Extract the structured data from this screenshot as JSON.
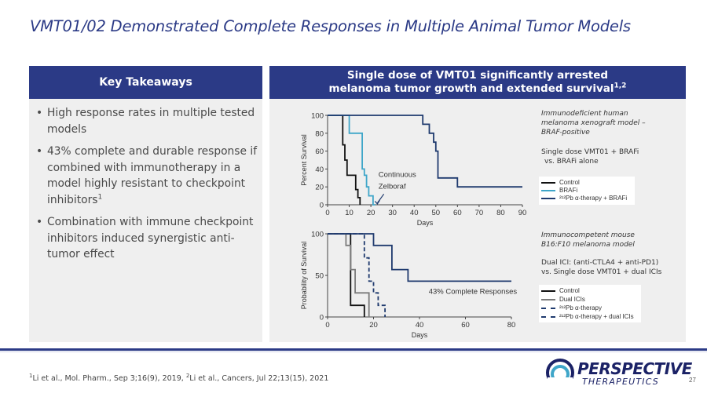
{
  "slide": {
    "title": "VMT01/02 Demonstrated Complete Responses in Multiple Animal Tumor Models",
    "page_number": "27"
  },
  "left_panel": {
    "header": "Key Takeaways",
    "bullets": [
      {
        "text": "High response rates in multiple tested models",
        "sup": ""
      },
      {
        "text": "43% complete and durable response if combined with immunotherapy in a model highly resistant to checkpoint inhibitors",
        "sup": "1"
      },
      {
        "text": "Combination with immune checkpoint inhibitors induced synergistic anti-tumor effect",
        "sup": ""
      }
    ]
  },
  "right_panel": {
    "header_line1": "Single dose of VMT01 significantly arrested",
    "header_line2": "melanoma tumor growth and extended survival",
    "header_sup": "1,2"
  },
  "chart_top_notes": {
    "model": "Immunodeficient human melanoma xenograft model – BRAF-positive",
    "model_l1": "Immunodeficient human",
    "model_l2": "melanoma xenograft model –",
    "model_l3": "BRAF-positive",
    "treatment_l1": "Single dose VMT01 + BRAFi",
    "treatment_l2": "vs. BRAFi alone",
    "annotation_l1": "Continuous",
    "annotation_l2": "Zelboraf"
  },
  "chart_bottom_notes": {
    "model_l1": "Immunocompetent mouse",
    "model_l2": "B16:F10 melanoma model",
    "treatment_l1": "Dual ICI: (anti-CTLA4 + anti-PD1)",
    "treatment_l2": "vs.  Single dose VMT01 + dual ICIs",
    "annotation": "43% Complete Responses"
  },
  "colors": {
    "brand_navy": "#2b3a86",
    "panel_gray": "#efefef",
    "control": "#111111",
    "brafi": "#3fa6c9",
    "vmt_brafi": "#1f3a6e",
    "dual_ici": "#7b7b7b",
    "vmt_dual": "#1f3a6e"
  },
  "footer": {
    "ref1_sup": "1",
    "ref1": "Li et al., Mol. Pharm., Sep 3;16(9), 2019, ",
    "ref2_sup": "2",
    "ref2": "Li et al., Cancers, Jul 22;13(15), 2021",
    "logo_word": "PERSPECTIVE",
    "logo_sub": "THERAPEUTICS"
  },
  "chart_data": [
    {
      "type": "line",
      "step": true,
      "xlabel": "Days",
      "ylabel": "Percent Survival",
      "xlim": [
        0,
        90
      ],
      "ylim": [
        0,
        100
      ],
      "xticks": [
        0,
        10,
        20,
        30,
        40,
        50,
        60,
        70,
        80,
        90
      ],
      "yticks": [
        0,
        20,
        40,
        60,
        80,
        100
      ],
      "series": [
        {
          "name": "Control",
          "color": "#111111",
          "dash": false,
          "x": [
            0,
            7,
            7,
            8,
            8,
            9,
            9,
            13,
            13,
            14,
            14,
            15,
            15
          ],
          "y": [
            100,
            100,
            67,
            67,
            50,
            50,
            33,
            33,
            17,
            17,
            8,
            8,
            0
          ]
        },
        {
          "name": "BRAFi",
          "color": "#3fa6c9",
          "dash": false,
          "x": [
            0,
            10,
            10,
            13,
            13,
            16,
            16,
            17,
            17,
            18,
            18,
            19,
            19,
            21,
            21,
            22
          ],
          "y": [
            100,
            100,
            80,
            80,
            80,
            80,
            40,
            40,
            33,
            33,
            20,
            20,
            10,
            10,
            0,
            0
          ]
        },
        {
          "name": "²¹²Pb α-therapy + BRAFi",
          "color": "#1f3a6e",
          "dash": false,
          "x": [
            0,
            44,
            44,
            47,
            47,
            49,
            49,
            50,
            50,
            51,
            51,
            60,
            60,
            90
          ],
          "y": [
            100,
            100,
            90,
            90,
            80,
            80,
            70,
            70,
            60,
            60,
            30,
            30,
            20,
            20
          ]
        }
      ]
    },
    {
      "type": "line",
      "step": true,
      "xlabel": "Days",
      "ylabel": "Probability of Survival",
      "xlim": [
        0,
        80
      ],
      "ylim": [
        0,
        100
      ],
      "xticks": [
        0,
        20,
        40,
        60,
        80
      ],
      "yticks": [
        0,
        50,
        100
      ],
      "series": [
        {
          "name": "Control",
          "color": "#111111",
          "dash": false,
          "x": [
            0,
            10,
            10,
            16,
            16
          ],
          "y": [
            100,
            100,
            14,
            14,
            0
          ]
        },
        {
          "name": "Dual ICIs",
          "color": "#7b7b7b",
          "dash": false,
          "x": [
            0,
            8,
            8,
            10,
            10,
            12,
            12,
            18,
            18
          ],
          "y": [
            100,
            100,
            86,
            86,
            57,
            57,
            29,
            29,
            0
          ]
        },
        {
          "name": "²¹²Pb α-therapy",
          "color": "#1f3a6e",
          "dash": true,
          "x": [
            0,
            16,
            16,
            18,
            18,
            20,
            20,
            22,
            22,
            25,
            25
          ],
          "y": [
            100,
            100,
            71,
            71,
            43,
            43,
            29,
            29,
            14,
            14,
            0
          ]
        },
        {
          "name": "²¹²Pb α-therapy + dual ICIs",
          "color": "#1f3a6e",
          "dash": false,
          "x": [
            0,
            20,
            20,
            28,
            28,
            35,
            35,
            80
          ],
          "y": [
            100,
            100,
            86,
            86,
            57,
            57,
            43,
            43
          ]
        }
      ]
    }
  ]
}
